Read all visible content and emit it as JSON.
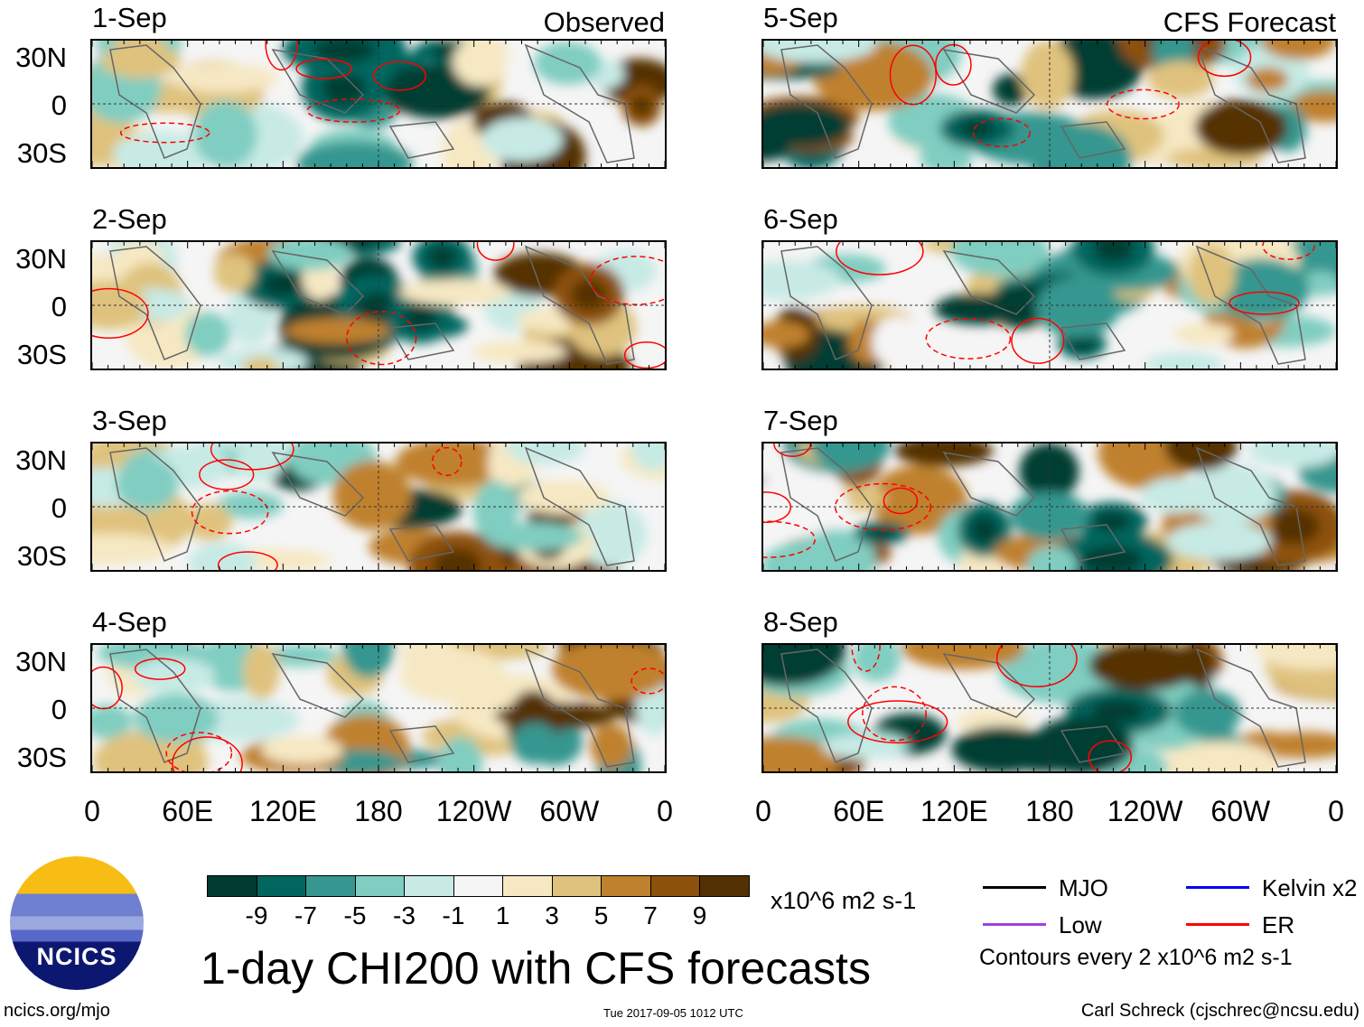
{
  "panels": [
    {
      "title": "1-Sep",
      "label": "Observed"
    },
    {
      "title": "2-Sep"
    },
    {
      "title": "3-Sep"
    },
    {
      "title": "4-Sep"
    },
    {
      "title": "5-Sep",
      "label": "CFS Forecast"
    },
    {
      "title": "6-Sep"
    },
    {
      "title": "7-Sep"
    },
    {
      "title": "8-Sep"
    }
  ],
  "lat_labels": [
    "30N",
    "0",
    "30S"
  ],
  "lon_labels": [
    "0",
    "60E",
    "120E",
    "180",
    "120W",
    "60W",
    "0"
  ],
  "colorbar": {
    "colors": [
      "#003c30",
      "#01665e",
      "#35978f",
      "#80cdc1",
      "#c7eae5",
      "#f5f5f5",
      "#f6e8c3",
      "#dfc27d",
      "#bf812d",
      "#8c510a",
      "#543005"
    ],
    "labels": [
      "-9",
      "-7",
      "-5",
      "-3",
      "-1",
      "1",
      "3",
      "5",
      "7",
      "9"
    ],
    "units": "x10^6 m2 s-1"
  },
  "title": "1-day CHI200 with CFS forecasts",
  "legend": {
    "items": [
      {
        "label": "MJO",
        "color": "#000000"
      },
      {
        "label": "Kelvin x2",
        "color": "#0000ff"
      },
      {
        "label": "Low",
        "color": "#a040e0"
      },
      {
        "label": "ER",
        "color": "#ff0000"
      }
    ],
    "note": "Contours every 2 x10^6 m2 s-1"
  },
  "logo_text": "NCICS",
  "footer": {
    "url": "ncics.org/mjo",
    "timestamp": "Tue 2017-09-05 1012 UTC",
    "credit": "Carl Schreck (cjschrec@ncsu.edu)"
  }
}
